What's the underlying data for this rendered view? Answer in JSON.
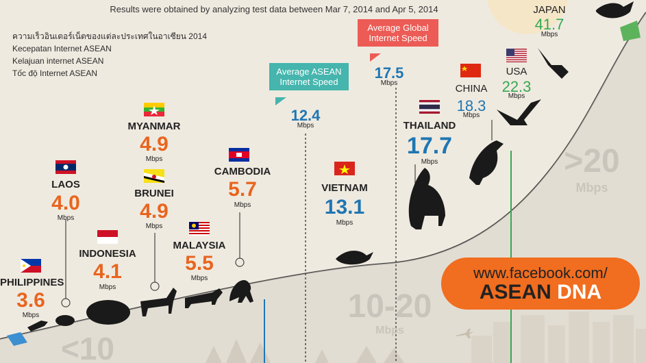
{
  "header": "Results were obtained by analyzing test data between Mar 7, 2014 and Apr 5, 2014",
  "languages": [
    "ความเร็วอินเตอร์เน็ตของแต่ละประเทศในอาเซียน 2014",
    "Kecepatan Internet ASEAN",
    "Kelajuan internet ASEAN",
    "Tốc độ Internet ASEAN"
  ],
  "unit": "Mbps",
  "countries": [
    {
      "name": "PHILIPPINES",
      "speed": "3.6",
      "flag": "philippines-flag"
    },
    {
      "name": "LAOS",
      "speed": "4.0",
      "flag": "laos-flag"
    },
    {
      "name": "INDONESIA",
      "speed": "4.1",
      "flag": "indonesia-flag"
    },
    {
      "name": "MYANMAR",
      "speed": "4.9",
      "flag": "myanmar-flag"
    },
    {
      "name": "BRUNEI",
      "speed": "4.9",
      "flag": "brunei-flag"
    },
    {
      "name": "MALAYSIA",
      "speed": "5.5",
      "flag": "malaysia-flag"
    },
    {
      "name": "CAMBODIA",
      "speed": "5.7",
      "flag": "cambodia-flag"
    },
    {
      "name": "VIETNAM",
      "speed": "13.1",
      "flag": "vietnam-flag"
    },
    {
      "name": "THAILAND",
      "speed": "17.7",
      "flag": "thailand-flag"
    },
    {
      "name": "CHINA",
      "speed": "18.3",
      "flag": "china-flag"
    },
    {
      "name": "USA",
      "speed": "22.3",
      "flag": "usa-flag"
    },
    {
      "name": "JAPAN",
      "speed": "41.7",
      "flag": ""
    }
  ],
  "averages": {
    "asean": {
      "label": "Average ASEAN Internet Speed",
      "value": "12.4"
    },
    "global": {
      "label": "Average Global Internet Speed",
      "value": "17.5"
    }
  },
  "tiers": {
    "low": "<10",
    "mid": "10-20",
    "high": ">20"
  },
  "promo": {
    "url": "www.facebook.com/",
    "brand_a": "ASEAN",
    "brand_b": "DNA"
  },
  "colors": {
    "slow": "#e8651f",
    "medium": "#1f76b3",
    "fast": "#34a853",
    "asean_callout": "#45b5ad",
    "global_callout": "#ec5b55",
    "promo_bg": "#f16d1f"
  }
}
